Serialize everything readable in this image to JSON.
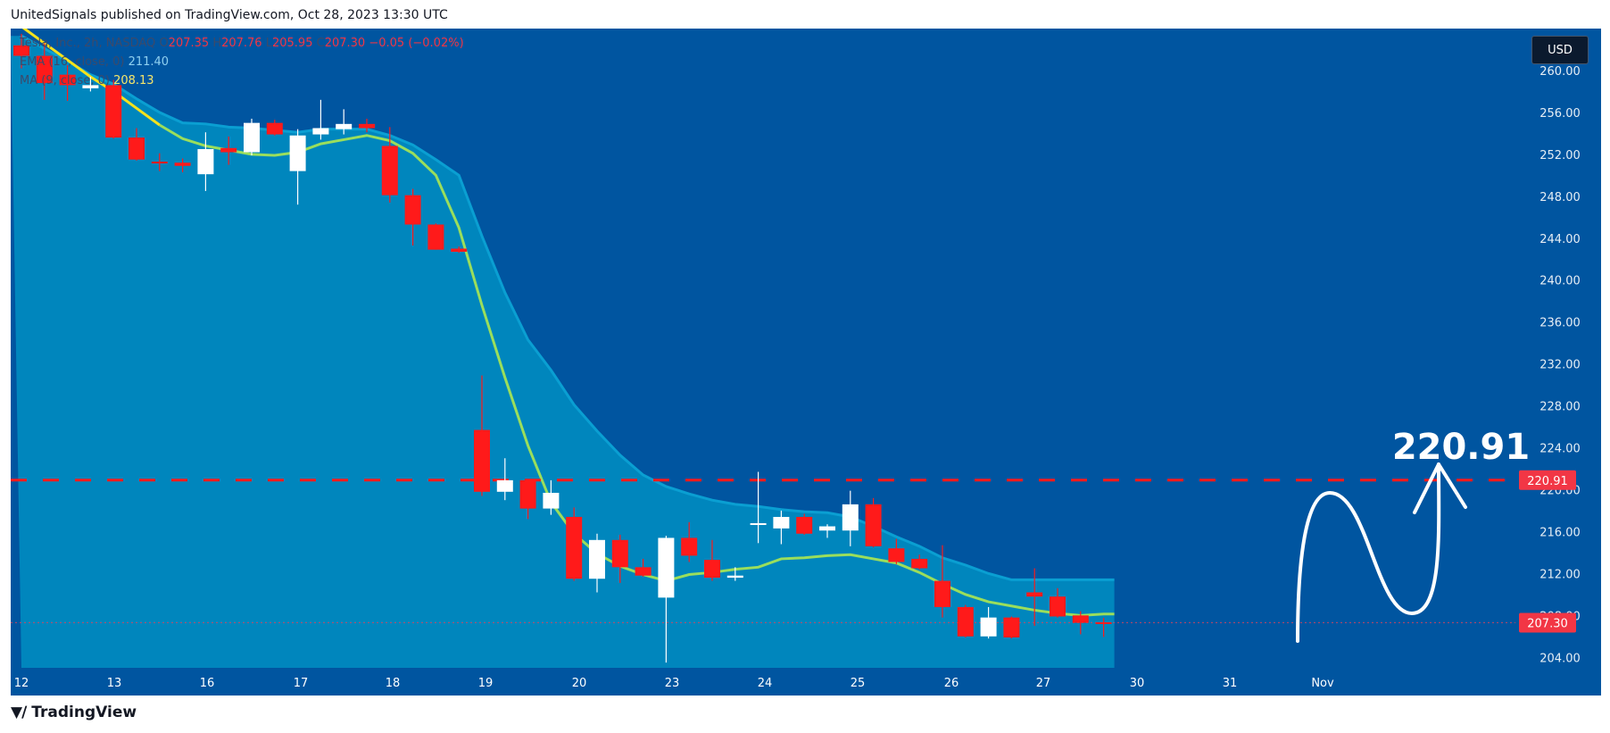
{
  "header": {
    "published_by": "UnitedSignals published on TradingView.com, Oct 28, 2023 13:30 UTC"
  },
  "footer": {
    "brand": "TradingView",
    "logo_icon": "tradingview-logo-icon"
  },
  "currency_button": "USD",
  "legend": {
    "symbol": "Tesla, Inc., 2h, NASDAQ",
    "o_label": "O",
    "o_value": "207.35",
    "h_label": "H",
    "h_value": "207.76",
    "l_label": "L",
    "l_value": "205.95",
    "c_label": "C",
    "c_value": "207.30",
    "change": "−0.05 (−0.02%)",
    "ema_label": "EMA (16, close, 0)",
    "ema_value": "211.40",
    "ma_label": "MA (9, close, 0)",
    "ma_value": "208.13"
  },
  "annotation": {
    "level_text": "220.91"
  },
  "colors": {
    "background": "#0055a0",
    "area_fill": "#0086bd",
    "ema_line": "#0a9fd2",
    "ma_line": "#9ade5c",
    "ma_early": "#f4e21c",
    "up_candle": "#ffffff",
    "down_candle": "#ff1a1a",
    "level_line": "#ff1a1a",
    "price_label_bg": "#f23645"
  },
  "chart_data": {
    "type": "candlestick",
    "symbol": "Tesla, Inc., 2h, NASDAQ",
    "ylim": [
      203,
      264
    ],
    "y_ticks": [
      "260.00",
      "256.00",
      "252.00",
      "248.00",
      "244.00",
      "240.00",
      "236.00",
      "232.00",
      "228.00",
      "224.00",
      "220.00",
      "216.00",
      "212.00",
      "208.00",
      "204.00"
    ],
    "x_ticks": [
      "12",
      "13",
      "16",
      "17",
      "18",
      "19",
      "20",
      "23",
      "24",
      "25",
      "26",
      "27",
      "30",
      "31",
      "Nov"
    ],
    "current_price": "207.30",
    "level_label": "220.91",
    "level": 220.91,
    "candles": [
      {
        "o": 262.4,
        "h": 263.5,
        "l": 260.2,
        "c": 261.4
      },
      {
        "o": 261.4,
        "h": 262.6,
        "l": 257.2,
        "c": 258.8
      },
      {
        "o": 259.6,
        "h": 260.5,
        "l": 257.1,
        "c": 258.6
      },
      {
        "o": 258.3,
        "h": 259.4,
        "l": 258.0,
        "c": 258.6
      },
      {
        "o": 258.6,
        "h": 259.1,
        "l": 253.5,
        "c": 253.6
      },
      {
        "o": 253.6,
        "h": 254.5,
        "l": 251.4,
        "c": 251.5
      },
      {
        "o": 251.3,
        "h": 252.1,
        "l": 250.4,
        "c": 251.2
      },
      {
        "o": 251.2,
        "h": 251.6,
        "l": 250.3,
        "c": 250.9
      },
      {
        "o": 250.1,
        "h": 254.1,
        "l": 248.5,
        "c": 252.5
      },
      {
        "o": 252.6,
        "h": 253.7,
        "l": 251.0,
        "c": 252.2
      },
      {
        "o": 252.2,
        "h": 255.4,
        "l": 251.9,
        "c": 255.0
      },
      {
        "o": 255.0,
        "h": 255.3,
        "l": 253.8,
        "c": 253.9
      },
      {
        "o": 250.4,
        "h": 254.4,
        "l": 247.2,
        "c": 253.8
      },
      {
        "o": 253.9,
        "h": 257.2,
        "l": 253.4,
        "c": 254.5
      },
      {
        "o": 254.4,
        "h": 256.3,
        "l": 253.9,
        "c": 254.9
      },
      {
        "o": 254.9,
        "h": 255.4,
        "l": 254.1,
        "c": 254.5
      },
      {
        "o": 252.8,
        "h": 254.6,
        "l": 247.4,
        "c": 248.1
      },
      {
        "o": 248.1,
        "h": 248.7,
        "l": 243.3,
        "c": 245.3
      },
      {
        "o": 245.3,
        "h": 245.4,
        "l": 242.9,
        "c": 242.9
      },
      {
        "o": 243.0,
        "h": 243.2,
        "l": 242.6,
        "c": 242.7
      },
      {
        "o": 225.7,
        "h": 230.9,
        "l": 219.4,
        "c": 219.8
      },
      {
        "o": 219.8,
        "h": 223.0,
        "l": 219.0,
        "c": 220.9
      },
      {
        "o": 220.9,
        "h": 221.0,
        "l": 217.2,
        "c": 218.2
      },
      {
        "o": 218.2,
        "h": 220.9,
        "l": 217.6,
        "c": 219.7
      },
      {
        "o": 217.4,
        "h": 218.3,
        "l": 211.3,
        "c": 211.5
      },
      {
        "o": 211.5,
        "h": 215.8,
        "l": 210.2,
        "c": 215.2
      },
      {
        "o": 215.2,
        "h": 215.7,
        "l": 211.1,
        "c": 212.6
      },
      {
        "o": 212.6,
        "h": 213.4,
        "l": 211.7,
        "c": 211.8
      },
      {
        "o": 209.7,
        "h": 215.6,
        "l": 203.5,
        "c": 215.4
      },
      {
        "o": 215.4,
        "h": 216.9,
        "l": 213.1,
        "c": 213.7
      },
      {
        "o": 213.3,
        "h": 215.2,
        "l": 211.3,
        "c": 211.6
      },
      {
        "o": 211.6,
        "h": 212.6,
        "l": 211.3,
        "c": 211.8
      },
      {
        "o": 216.8,
        "h": 221.7,
        "l": 214.9,
        "c": 216.8
      },
      {
        "o": 216.3,
        "h": 218.0,
        "l": 214.8,
        "c": 217.4
      },
      {
        "o": 217.4,
        "h": 217.7,
        "l": 215.7,
        "c": 215.8
      },
      {
        "o": 216.1,
        "h": 216.7,
        "l": 215.4,
        "c": 216.5
      },
      {
        "o": 216.1,
        "h": 219.9,
        "l": 214.6,
        "c": 218.6
      },
      {
        "o": 218.6,
        "h": 219.2,
        "l": 214.5,
        "c": 214.6
      },
      {
        "o": 214.4,
        "h": 215.3,
        "l": 212.9,
        "c": 213.1
      },
      {
        "o": 213.4,
        "h": 213.8,
        "l": 212.4,
        "c": 212.5
      },
      {
        "o": 211.3,
        "h": 214.7,
        "l": 207.8,
        "c": 208.8
      },
      {
        "o": 208.8,
        "h": 209.0,
        "l": 205.9,
        "c": 206.0
      },
      {
        "o": 206.0,
        "h": 208.8,
        "l": 205.8,
        "c": 207.8
      },
      {
        "o": 207.8,
        "h": 207.9,
        "l": 205.8,
        "c": 205.9
      },
      {
        "o": 210.2,
        "h": 212.5,
        "l": 207.0,
        "c": 209.8
      },
      {
        "o": 209.8,
        "h": 210.6,
        "l": 207.8,
        "c": 207.9
      },
      {
        "o": 208.0,
        "h": 208.4,
        "l": 206.2,
        "c": 207.3
      },
      {
        "o": 207.35,
        "h": 207.76,
        "l": 205.95,
        "c": 207.3
      }
    ],
    "ma": [
      264.2,
      262.6,
      261.0,
      259.4,
      258.0,
      256.4,
      254.8,
      253.5,
      252.8,
      252.4,
      252.0,
      251.9,
      252.2,
      253.0,
      253.4,
      253.8,
      253.3,
      252.1,
      250.0,
      245.0,
      237.6,
      230.7,
      224.2,
      218.8,
      215.8,
      213.9,
      212.7,
      211.9,
      211.3,
      211.9,
      212.1,
      212.4,
      212.6,
      213.4,
      213.5,
      213.7,
      213.8,
      213.4,
      213.0,
      212.1,
      211.0,
      210.0,
      209.3,
      208.9,
      208.5,
      208.2,
      208.0,
      208.13
    ],
    "ema": [
      263.3,
      262.1,
      260.9,
      259.6,
      258.7,
      257.3,
      256.0,
      255.0,
      254.9,
      254.6,
      254.5,
      254.3,
      254.1,
      254.4,
      254.4,
      254.4,
      253.8,
      252.9,
      251.5,
      250.0,
      244.2,
      238.8,
      234.3,
      231.4,
      228.1,
      225.6,
      223.3,
      221.4,
      220.3,
      219.6,
      219.0,
      218.6,
      218.4,
      218.1,
      217.9,
      217.8,
      217.4,
      216.5,
      215.5,
      214.6,
      213.5,
      212.8,
      212.0,
      211.4,
      211.4,
      211.4,
      211.4,
      211.4
    ]
  }
}
